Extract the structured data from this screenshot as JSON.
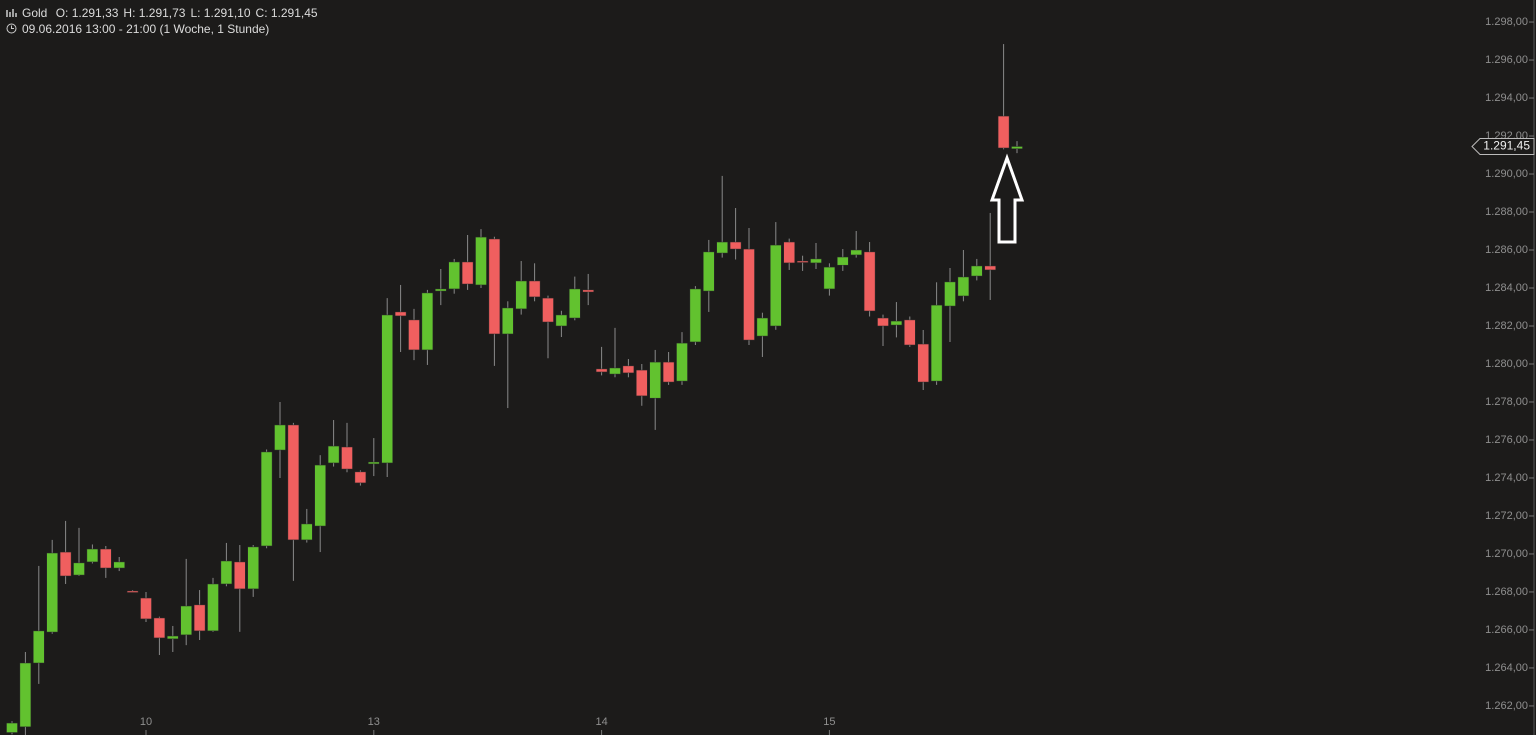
{
  "chart_data": {
    "type": "candlestick",
    "title": "Gold",
    "annotations": [
      "O: 1.291,33",
      "H: 1.291,73",
      "L: 1.291,10",
      "C: 1.291,45"
    ],
    "subtitle": "09.06.2016 13:00 - 21:00 (1 Woche, 1 Stunde)",
    "categories": [
      null,
      null,
      null,
      null,
      null,
      null,
      null,
      null,
      null,
      null,
      "10",
      null,
      null,
      null,
      null,
      null,
      null,
      null,
      null,
      null,
      null,
      null,
      null,
      null,
      null,
      null,
      null,
      "13",
      null,
      null,
      null,
      null,
      null,
      null,
      null,
      null,
      null,
      null,
      null,
      null,
      null,
      null,
      null,
      null,
      "14",
      null,
      null,
      null,
      null,
      null,
      null,
      null,
      null,
      null,
      null,
      null,
      null,
      null,
      null,
      null,
      null,
      "15",
      null,
      null,
      null,
      null,
      null,
      null,
      null,
      null,
      null,
      null,
      null,
      null,
      null,
      null
    ],
    "open": [
      1260.6,
      1260.9,
      1264.26,
      1265.89,
      1270.1,
      1268.89,
      1269.58,
      1270.26,
      1269.26,
      1268.05,
      1267.68,
      1266.63,
      1265.53,
      1265.74,
      1267.32,
      1265.95,
      1268.42,
      1269.58,
      1268.16,
      1270.42,
      1275.47,
      1276.79,
      1270.74,
      1271.47,
      1274.79,
      1275.63,
      1274.32,
      1274.74,
      1274.79,
      1282.74,
      1282.32,
      1280.74,
      1283.84,
      1283.95,
      1285.37,
      1284.16,
      1286.58,
      1281.58,
      1282.9,
      1284.37,
      1283.47,
      1282.0,
      1282.42,
      1283.9,
      1279.74,
      1279.47,
      1279.9,
      1279.68,
      1278.2,
      1280.1,
      1279.1,
      1281.16,
      1283.84,
      1285.84,
      1286.42,
      1286.05,
      1281.47,
      1282.0,
      1286.42,
      1285.42,
      1285.32,
      1283.95,
      1285.2,
      1285.74,
      1285.9,
      1282.42,
      1282.05,
      1282.32,
      1281.05,
      1279.1,
      1283.05,
      1283.58,
      1284.63,
      1285.16,
      1293.05,
      1291.33
    ],
    "high": [
      1261.2,
      1264.84,
      1269.37,
      1270.74,
      1271.74,
      1271.37,
      1270.5,
      1270.42,
      1269.84,
      1268.1,
      1268.0,
      1266.7,
      1266.21,
      1269.74,
      1268.1,
      1268.74,
      1270.58,
      1270.47,
      1270.47,
      1275.5,
      1278.0,
      1276.9,
      1272.37,
      1275.2,
      1277.05,
      1276.9,
      1274.4,
      1276.1,
      1283.47,
      1284.16,
      1282.9,
      1283.9,
      1285.0,
      1285.53,
      1286.79,
      1287.1,
      1286.7,
      1283.3,
      1285.42,
      1285.3,
      1283.6,
      1282.8,
      1284.6,
      1284.74,
      1280.9,
      1281.9,
      1280.26,
      1280.0,
      1280.74,
      1280.63,
      1281.68,
      1284.1,
      1286.53,
      1289.9,
      1288.21,
      1287.16,
      1282.7,
      1287.47,
      1286.6,
      1285.7,
      1286.37,
      1285.3,
      1286.05,
      1287.0,
      1286.42,
      1282.6,
      1283.26,
      1282.5,
      1281.79,
      1284.3,
      1285.05,
      1286.0,
      1285.53,
      1287.95,
      1296.84,
      1291.73
    ],
    "low": [
      1260.5,
      1260.47,
      1263.16,
      1265.8,
      1268.42,
      1268.84,
      1269.5,
      1268.74,
      1269.1,
      1268.0,
      1266.42,
      1264.68,
      1264.84,
      1265.2,
      1265.47,
      1265.9,
      1268.3,
      1265.9,
      1267.74,
      1270.3,
      1274.0,
      1268.58,
      1270.6,
      1270.1,
      1274.6,
      1274.3,
      1273.6,
      1274.1,
      1274.05,
      1280.63,
      1280.2,
      1279.95,
      1283.1,
      1283.7,
      1283.9,
      1284.0,
      1279.9,
      1277.68,
      1282.6,
      1283.3,
      1280.3,
      1281.42,
      1282.3,
      1283.1,
      1279.4,
      1279.3,
      1279.3,
      1277.8,
      1276.53,
      1278.9,
      1278.9,
      1281.0,
      1282.74,
      1285.6,
      1285.5,
      1281.0,
      1280.37,
      1281.8,
      1284.95,
      1284.9,
      1285.0,
      1283.6,
      1284.9,
      1285.6,
      1282.5,
      1280.95,
      1281.4,
      1280.9,
      1278.63,
      1278.9,
      1281.16,
      1283.3,
      1284.4,
      1283.37,
      1291.3,
      1291.1
    ],
    "close": [
      1261.1,
      1264.26,
      1265.95,
      1270.05,
      1268.84,
      1269.53,
      1270.26,
      1269.26,
      1269.58,
      1268.0,
      1266.58,
      1265.58,
      1265.68,
      1267.26,
      1265.95,
      1268.42,
      1269.63,
      1268.16,
      1270.37,
      1275.37,
      1276.79,
      1270.74,
      1271.58,
      1274.68,
      1275.68,
      1274.47,
      1273.74,
      1274.84,
      1282.58,
      1282.53,
      1280.74,
      1283.74,
      1283.95,
      1285.37,
      1284.21,
      1286.68,
      1281.58,
      1282.95,
      1284.37,
      1283.53,
      1282.21,
      1282.58,
      1283.95,
      1283.79,
      1279.58,
      1279.79,
      1279.53,
      1278.32,
      1280.1,
      1279.05,
      1281.1,
      1283.95,
      1285.9,
      1286.42,
      1286.05,
      1281.26,
      1282.42,
      1286.26,
      1285.32,
      1285.37,
      1285.53,
      1285.1,
      1285.63,
      1286.0,
      1282.79,
      1282.0,
      1282.26,
      1281.0,
      1279.05,
      1283.1,
      1284.32,
      1284.58,
      1285.16,
      1284.95,
      1291.37,
      1291.45
    ],
    "up_color": "#62c22f",
    "down_color": "#f05f5f",
    "ylim": [
      1260.47,
      1299.16
    ],
    "yticks": [
      {
        "value": 1262,
        "label": "1.262,00"
      },
      {
        "value": 1264,
        "label": "1.264,00"
      },
      {
        "value": 1266,
        "label": "1.266,00"
      },
      {
        "value": 1268,
        "label": "1.268,00"
      },
      {
        "value": 1270,
        "label": "1.270,00"
      },
      {
        "value": 1272,
        "label": "1.272,00"
      },
      {
        "value": 1274,
        "label": "1.274,00"
      },
      {
        "value": 1276,
        "label": "1.276,00"
      },
      {
        "value": 1278,
        "label": "1.278,00"
      },
      {
        "value": 1280,
        "label": "1.280,00"
      },
      {
        "value": 1282,
        "label": "1.282,00"
      },
      {
        "value": 1284,
        "label": "1.284,00"
      },
      {
        "value": 1286,
        "label": "1.286,00"
      },
      {
        "value": 1288,
        "label": "1.288,00"
      },
      {
        "value": 1290,
        "label": "1.290,00"
      },
      {
        "value": 1292,
        "label": "1.292,00"
      },
      {
        "value": 1294,
        "label": "1.294,00"
      },
      {
        "value": 1296,
        "label": "1.296,00"
      },
      {
        "value": 1298,
        "label": "1.298,00"
      }
    ],
    "last_price": {
      "value": 1291.45,
      "label": "1.291,45"
    }
  }
}
